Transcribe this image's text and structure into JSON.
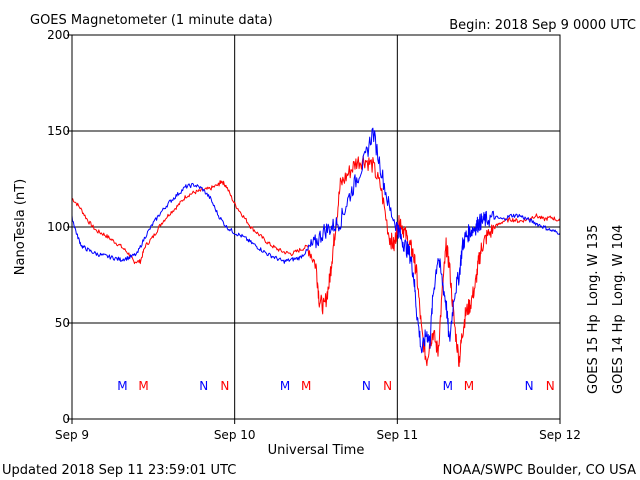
{
  "header": {
    "title": "GOES Magnetometer (1 minute data)",
    "begin": "Begin:  2018 Sep 9 0000 UTC"
  },
  "footer": {
    "updated": "Updated 2018 Sep 11 23:59:01 UTC",
    "credit": "NOAA/SWPC Boulder, CO USA"
  },
  "colors": {
    "goes15": "#ff0000",
    "goes14": "#0000ff",
    "axis": "#000000"
  },
  "chart_data": {
    "type": "line",
    "xlabel": "Universal Time",
    "ylabel": "NanoTesla (nT)",
    "xlim": [
      0,
      3
    ],
    "ylim": [
      0,
      200
    ],
    "x_ticks": [
      {
        "x": 0,
        "label": "Sep 9"
      },
      {
        "x": 1,
        "label": "Sep 10"
      },
      {
        "x": 2,
        "label": "Sep 11"
      },
      {
        "x": 3,
        "label": "Sep 12"
      }
    ],
    "y_ticks": [
      {
        "y": 0,
        "label": "0"
      },
      {
        "y": 50,
        "label": "50"
      },
      {
        "y": 100,
        "label": "100"
      },
      {
        "y": 150,
        "label": "150"
      },
      {
        "y": 200,
        "label": "200"
      }
    ],
    "grid": true,
    "legend": [
      {
        "name": "GOES 15 Hp  Long. W 135",
        "color": "#ff0000"
      },
      {
        "name": "GOES 14 Hp  Long. W 104",
        "color": "#0000ff"
      }
    ],
    "markers": [
      {
        "x": 0.31,
        "label": "M",
        "color": "#0000ff"
      },
      {
        "x": 0.44,
        "label": "M",
        "color": "#ff0000"
      },
      {
        "x": 0.81,
        "label": "N",
        "color": "#0000ff"
      },
      {
        "x": 0.94,
        "label": "N",
        "color": "#ff0000"
      },
      {
        "x": 1.31,
        "label": "M",
        "color": "#0000ff"
      },
      {
        "x": 1.44,
        "label": "M",
        "color": "#ff0000"
      },
      {
        "x": 1.81,
        "label": "N",
        "color": "#0000ff"
      },
      {
        "x": 1.94,
        "label": "N",
        "color": "#ff0000"
      },
      {
        "x": 2.31,
        "label": "M",
        "color": "#0000ff"
      },
      {
        "x": 2.44,
        "label": "M",
        "color": "#ff0000"
      },
      {
        "x": 2.81,
        "label": "N",
        "color": "#0000ff"
      },
      {
        "x": 2.94,
        "label": "N",
        "color": "#ff0000"
      }
    ],
    "series": [
      {
        "name": "GOES 15 Hp  Long. W 135",
        "color": "#ff0000",
        "x": [
          0,
          0.05,
          0.1,
          0.15,
          0.2,
          0.25,
          0.3,
          0.35,
          0.38,
          0.42,
          0.45,
          0.5,
          0.55,
          0.6,
          0.65,
          0.7,
          0.75,
          0.8,
          0.85,
          0.9,
          0.92,
          0.95,
          1.0,
          1.05,
          1.1,
          1.15,
          1.2,
          1.25,
          1.3,
          1.35,
          1.4,
          1.45,
          1.5,
          1.52,
          1.55,
          1.58,
          1.6,
          1.62,
          1.65,
          1.7,
          1.75,
          1.8,
          1.85,
          1.9,
          1.95,
          1.98,
          2.0,
          2.02,
          2.05,
          2.08,
          2.1,
          2.12,
          2.15,
          2.18,
          2.2,
          2.22,
          2.25,
          2.28,
          2.3,
          2.32,
          2.35,
          2.38,
          2.4,
          2.42,
          2.45,
          2.48,
          2.5,
          2.52,
          2.55,
          2.6,
          2.65,
          2.7,
          2.75,
          2.8,
          2.85,
          2.9,
          2.95,
          3.0
        ],
        "values": [
          115,
          110,
          103,
          98,
          96,
          93,
          90,
          86,
          82,
          82,
          90,
          95,
          102,
          107,
          111,
          116,
          118,
          119,
          120,
          122,
          124,
          121,
          112,
          106,
          100,
          96,
          92,
          89,
          87,
          86,
          88,
          90,
          80,
          62,
          58,
          70,
          85,
          100,
          122,
          128,
          134,
          135,
          132,
          120,
          95,
          90,
          100,
          103,
          96,
          90,
          85,
          75,
          45,
          30,
          40,
          45,
          35,
          70,
          90,
          80,
          50,
          30,
          45,
          55,
          60,
          70,
          82,
          90,
          95,
          100,
          103,
          104,
          103,
          104,
          106,
          104,
          105,
          103
        ]
      },
      {
        "name": "GOES 14 Hp  Long. W 104",
        "color": "#0000ff",
        "x": [
          0,
          0.03,
          0.06,
          0.1,
          0.15,
          0.2,
          0.25,
          0.3,
          0.35,
          0.4,
          0.45,
          0.5,
          0.55,
          0.6,
          0.65,
          0.7,
          0.75,
          0.8,
          0.85,
          0.9,
          0.95,
          1.0,
          1.05,
          1.1,
          1.15,
          1.2,
          1.25,
          1.3,
          1.35,
          1.4,
          1.45,
          1.5,
          1.55,
          1.6,
          1.65,
          1.7,
          1.75,
          1.8,
          1.85,
          1.9,
          1.95,
          2.0,
          2.02,
          2.05,
          2.08,
          2.1,
          2.12,
          2.15,
          2.18,
          2.2,
          2.22,
          2.25,
          2.28,
          2.3,
          2.32,
          2.35,
          2.38,
          2.4,
          2.42,
          2.45,
          2.48,
          2.5,
          2.52,
          2.55,
          2.6,
          2.65,
          2.7,
          2.75,
          2.8,
          2.85,
          2.9,
          2.95,
          3.0
        ],
        "values": [
          105,
          96,
          90,
          88,
          86,
          85,
          84,
          83,
          84,
          86,
          95,
          102,
          108,
          113,
          117,
          121,
          122,
          120,
          115,
          106,
          100,
          97,
          95,
          92,
          89,
          86,
          84,
          82,
          83,
          84,
          88,
          92,
          98,
          100,
          103,
          115,
          125,
          135,
          150,
          130,
          110,
          100,
          95,
          90,
          85,
          75,
          55,
          35,
          45,
          40,
          65,
          85,
          70,
          60,
          40,
          65,
          75,
          90,
          95,
          98,
          100,
          102,
          103,
          104,
          105,
          104,
          106,
          106,
          104,
          102,
          100,
          98,
          97
        ]
      }
    ]
  }
}
